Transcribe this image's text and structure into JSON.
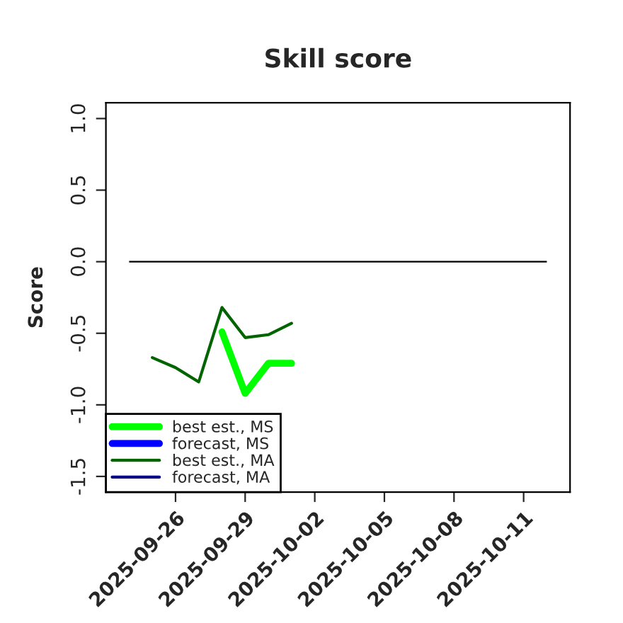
{
  "chart_data": {
    "type": "line",
    "title": "Skill score",
    "ylabel": "Score",
    "x": [
      "2025-09-25",
      "2025-09-26",
      "2025-09-27",
      "2025-09-28",
      "2025-09-29",
      "2025-09-30",
      "2025-10-01"
    ],
    "series": [
      {
        "name": "best est., MS",
        "color": "#00ff00",
        "values": [
          null,
          null,
          null,
          -0.49,
          -0.92,
          -0.71,
          -0.71
        ]
      },
      {
        "name": "forecast, MS",
        "color": "#0000ff",
        "values": [
          null,
          null,
          null,
          null,
          null,
          null,
          null
        ]
      },
      {
        "name": "best est., MA",
        "color": "#006400",
        "values": [
          -0.67,
          -0.74,
          -0.84,
          -0.32,
          -0.53,
          -0.51,
          -0.43
        ]
      },
      {
        "name": "forecast, MA",
        "color": "#00008b",
        "values": [
          null,
          null,
          null,
          null,
          null,
          null,
          null
        ]
      }
    ],
    "xlim": [
      "2025-09-23",
      "2025-10-13"
    ],
    "xticks": [
      "2025-09-26",
      "2025-09-29",
      "2025-10-02",
      "2025-10-05",
      "2025-10-08",
      "2025-10-11"
    ],
    "ylim": [
      -1.61,
      1.11
    ],
    "yticks": [
      {
        "value": 1,
        "label": "1.0"
      },
      {
        "value": 0.5,
        "label": "0.5"
      },
      {
        "value": 0,
        "label": "0.0"
      },
      {
        "value": -0.5,
        "label": "-0.5"
      },
      {
        "value": -1,
        "label": "-1.0"
      },
      {
        "value": -1.5,
        "label": "-1.5"
      }
    ],
    "ref_lines": [
      {
        "axis": "y",
        "value": 0,
        "color": "#000000"
      }
    ],
    "legend": "bottom left",
    "grid": false
  }
}
